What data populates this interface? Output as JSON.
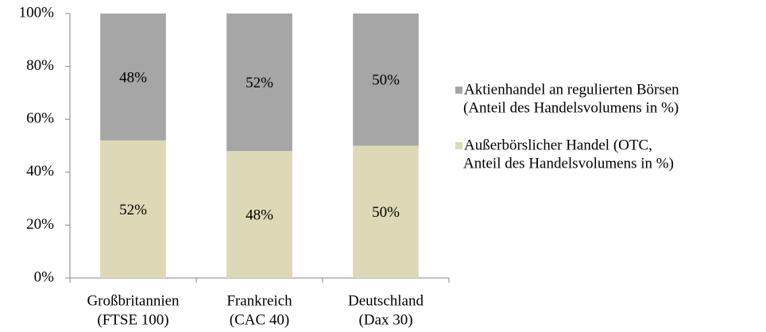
{
  "chart_data": {
    "type": "stacked_bar",
    "categories": [
      [
        "Großbritannien",
        "(FTSE 100)"
      ],
      [
        "Frankreich",
        "(CAC 40)"
      ],
      [
        "Deutschland",
        "(Dax 30)"
      ]
    ],
    "series": [
      {
        "name": [
          "Außerbörslicher Handel (OTC,",
          "Anteil des Handelsvolumens in %)"
        ],
        "color": "#ddd9b6",
        "values": [
          52,
          48,
          50
        ],
        "value_labels": [
          "52%",
          "48%",
          "50%"
        ]
      },
      {
        "name": [
          "Aktienhandel an regulierten Börsen",
          "(Anteil des Handelsvolumens in %)"
        ],
        "color": "#a6a6a6",
        "values": [
          48,
          52,
          50
        ],
        "value_labels": [
          "48%",
          "52%",
          "50%"
        ]
      }
    ],
    "ylim": [
      0,
      100
    ],
    "yticks": [
      {
        "value": 0,
        "label": "0%"
      },
      {
        "value": 20,
        "label": "20%"
      },
      {
        "value": 40,
        "label": "40%"
      },
      {
        "value": 60,
        "label": "60%"
      },
      {
        "value": 80,
        "label": "80%"
      },
      {
        "value": 100,
        "label": "100%"
      }
    ],
    "legend": "right"
  }
}
